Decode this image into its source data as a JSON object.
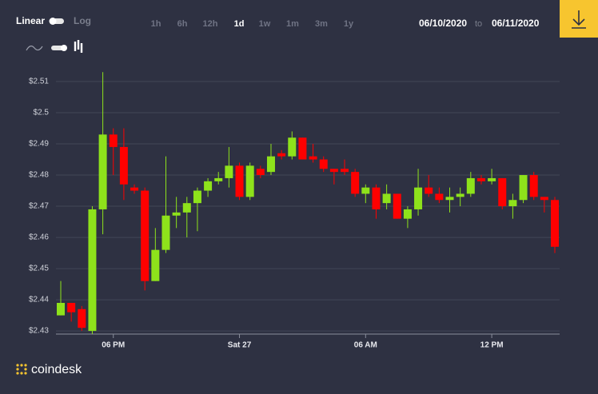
{
  "controls": {
    "scale_linear": "Linear",
    "scale_log": "Log",
    "ranges": [
      "1h",
      "6h",
      "12h",
      "1d",
      "1w",
      "1m",
      "3m",
      "1y"
    ],
    "active_range_index": 3,
    "date_from": "06/10/2020",
    "date_to_word": "to",
    "date_to": "06/11/2020"
  },
  "chart_data": {
    "type": "candlestick",
    "categories": [
      null,
      null,
      null,
      null,
      null,
      "06 PM",
      null,
      null,
      null,
      null,
      null,
      null,
      null,
      null,
      null,
      null,
      null,
      "Sat 27",
      null,
      null,
      null,
      null,
      null,
      null,
      null,
      null,
      null,
      null,
      null,
      "06 AM",
      null,
      null,
      null,
      null,
      null,
      null,
      null,
      null,
      null,
      null,
      null,
      "12 PM",
      null,
      null,
      null,
      null,
      null,
      null
    ],
    "open": [
      2.435,
      2.439,
      2.437,
      2.43,
      2.469,
      2.493,
      2.489,
      2.476,
      2.475,
      2.446,
      2.456,
      2.467,
      2.468,
      2.471,
      2.475,
      2.478,
      2.479,
      2.483,
      2.473,
      2.482,
      2.481,
      2.487,
      2.486,
      2.492,
      2.486,
      2.485,
      2.482,
      2.482,
      2.481,
      2.474,
      2.476,
      2.471,
      2.474,
      2.466,
      2.469,
      2.476,
      2.474,
      2.472,
      2.473,
      2.474,
      2.479,
      2.478,
      2.479,
      2.47,
      2.472,
      2.48,
      2.473,
      2.472
    ],
    "high": [
      2.446,
      2.439,
      2.438,
      2.47,
      2.513,
      2.495,
      2.495,
      2.477,
      2.476,
      2.463,
      2.486,
      2.473,
      2.473,
      2.476,
      2.479,
      2.481,
      2.489,
      2.484,
      2.484,
      2.483,
      2.49,
      2.488,
      2.494,
      2.492,
      2.49,
      2.486,
      2.482,
      2.485,
      2.482,
      2.477,
      2.477,
      2.477,
      2.474,
      2.47,
      2.482,
      2.48,
      2.476,
      2.476,
      2.476,
      2.481,
      2.48,
      2.482,
      2.479,
      2.474,
      2.48,
      2.481,
      2.473,
      2.473
    ],
    "low": [
      2.435,
      2.433,
      2.43,
      2.429,
      2.461,
      2.48,
      2.472,
      2.474,
      2.443,
      2.446,
      2.455,
      2.463,
      2.46,
      2.462,
      2.473,
      2.477,
      2.476,
      2.472,
      2.472,
      2.479,
      2.48,
      2.485,
      2.485,
      2.485,
      2.484,
      2.481,
      2.477,
      2.48,
      2.473,
      2.471,
      2.466,
      2.469,
      2.466,
      2.463,
      2.467,
      2.473,
      2.471,
      2.468,
      2.47,
      2.473,
      2.477,
      2.477,
      2.469,
      2.466,
      2.471,
      2.472,
      2.468,
      2.455
    ],
    "close": [
      2.439,
      2.436,
      2.431,
      2.469,
      2.493,
      2.489,
      2.477,
      2.475,
      2.446,
      2.456,
      2.467,
      2.468,
      2.471,
      2.475,
      2.478,
      2.479,
      2.483,
      2.473,
      2.483,
      2.48,
      2.486,
      2.486,
      2.492,
      2.485,
      2.485,
      2.482,
      2.481,
      2.481,
      2.474,
      2.476,
      2.469,
      2.474,
      2.466,
      2.469,
      2.476,
      2.474,
      2.472,
      2.473,
      2.474,
      2.479,
      2.478,
      2.479,
      2.47,
      2.472,
      2.48,
      2.473,
      2.472,
      2.457
    ],
    "up_color": "#8ee21b",
    "down_color": "#ff0000",
    "ylim": [
      2.429,
      2.514
    ],
    "yticks": [
      {
        "value": 2.43,
        "label": "$2.43"
      },
      {
        "value": 2.44,
        "label": "$2.44"
      },
      {
        "value": 2.45,
        "label": "$2.45"
      },
      {
        "value": 2.46,
        "label": "$2.46"
      },
      {
        "value": 2.47,
        "label": "$2.47"
      },
      {
        "value": 2.48,
        "label": "$2.48"
      },
      {
        "value": 2.49,
        "label": "$2.49"
      },
      {
        "value": 2.5,
        "label": "$2.5"
      },
      {
        "value": 2.51,
        "label": "$2.51"
      }
    ],
    "grid": true
  },
  "footer": {
    "brand": "coindesk"
  }
}
